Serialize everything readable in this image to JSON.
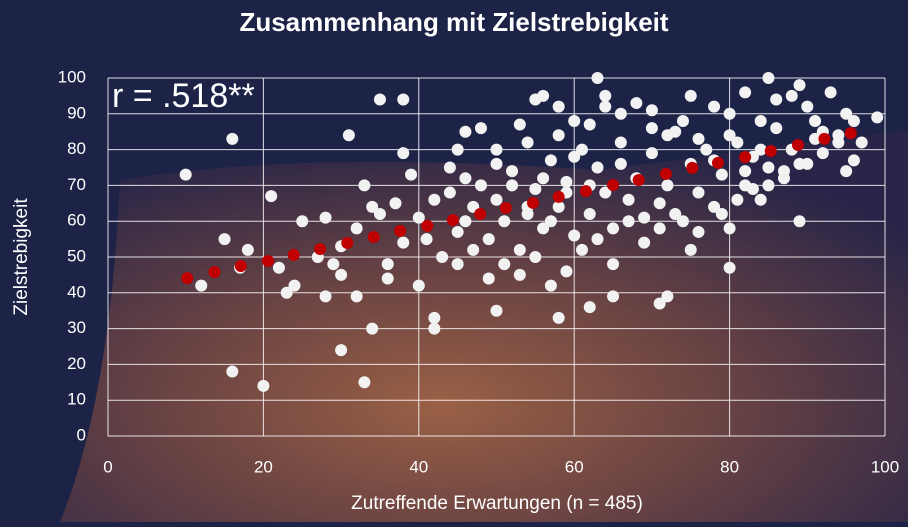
{
  "chart_data": {
    "type": "scatter",
    "title": "Zusammenhang mit Zielstrebigkeit",
    "x_label": "Zutreffende Erwartungen (n = 485)",
    "y_label": "Zielstrebigkeit",
    "annotation": "r = .518**",
    "xlim": [
      0,
      100
    ],
    "xticks": [
      0,
      20,
      40,
      60,
      80,
      100
    ],
    "ylim": [
      0,
      100
    ],
    "yticks": [
      0,
      10,
      20,
      30,
      40,
      50,
      60,
      70,
      80,
      90,
      100
    ],
    "grid": true,
    "series": [
      {
        "color": "#f2f2f2",
        "x": [
          10,
          12,
          15,
          16,
          16,
          20,
          21,
          23,
          24,
          25,
          28,
          30,
          31,
          32,
          33,
          34,
          35,
          38,
          38,
          40,
          42,
          42,
          50,
          58,
          62,
          63,
          64,
          65,
          71,
          72,
          75,
          80,
          82,
          85,
          89,
          89,
          93,
          95,
          96,
          99,
          17,
          18,
          22,
          27,
          29,
          30,
          32,
          36,
          38,
          37,
          40,
          44,
          45,
          46,
          48,
          50,
          53,
          55,
          56,
          58,
          60,
          62,
          64,
          66,
          68,
          70,
          72,
          75,
          78,
          80,
          84,
          86,
          88,
          90,
          92,
          94,
          96,
          28,
          30,
          33,
          34,
          35,
          36,
          39,
          41,
          43,
          44,
          45,
          46,
          47,
          48,
          49,
          50,
          51,
          52,
          53,
          54,
          55,
          56,
          57,
          58,
          59,
          60,
          61,
          62,
          63,
          64,
          65,
          66,
          67,
          68,
          69,
          70,
          71,
          72,
          73,
          74,
          75,
          76,
          77,
          78,
          79,
          80,
          81,
          82,
          83,
          84,
          85,
          86,
          87,
          88,
          90,
          91,
          92,
          94,
          95,
          97,
          45,
          47,
          49,
          51,
          53,
          55,
          57,
          59,
          61,
          63,
          65,
          67,
          69,
          71,
          73,
          76,
          79,
          81,
          83,
          85,
          87,
          89,
          91,
          42,
          46,
          50,
          54,
          56,
          58,
          60,
          62,
          66,
          70,
          74,
          76,
          78,
          80,
          82,
          84,
          52,
          54,
          57,
          59
        ],
        "values": [
          73,
          42,
          55,
          83,
          18,
          14,
          67,
          40,
          42,
          60,
          39,
          24,
          84,
          39,
          15,
          30,
          94,
          94,
          79,
          42,
          33,
          30,
          35,
          33,
          36,
          100,
          95,
          39,
          37,
          39,
          52,
          47,
          96,
          100,
          98,
          60,
          96,
          90,
          77,
          89,
          47,
          52,
          47,
          50,
          48,
          53,
          58,
          48,
          54,
          65,
          61,
          75,
          80,
          85,
          86,
          80,
          87,
          94,
          95,
          92,
          88,
          87,
          92,
          90,
          93,
          91,
          84,
          95,
          92,
          90,
          88,
          94,
          95,
          92,
          85,
          82,
          88,
          61,
          45,
          70,
          64,
          62,
          44,
          73,
          55,
          50,
          68,
          57,
          72,
          64,
          70,
          55,
          66,
          60,
          74,
          52,
          62,
          69,
          58,
          77,
          64,
          71,
          56,
          80,
          62,
          75,
          68,
          58,
          82,
          66,
          72,
          61,
          79,
          65,
          70,
          85,
          60,
          76,
          68,
          80,
          64,
          73,
          58,
          82,
          70,
          78,
          66,
          75,
          86,
          72,
          80,
          76,
          88,
          79,
          84,
          74,
          82,
          48,
          52,
          44,
          48,
          45,
          50,
          42,
          46,
          52,
          55,
          48,
          60,
          54,
          58,
          62,
          57,
          62,
          66,
          69,
          70,
          74,
          76,
          83,
          66,
          60,
          76,
          82,
          72,
          84,
          78,
          70,
          76,
          86,
          88,
          83,
          77,
          84,
          74,
          80,
          70,
          64,
          60,
          68
        ]
      },
      {
        "color": "#c00000",
        "x": [
          10.2,
          13.7,
          17.1,
          20.6,
          23.9,
          27.3,
          30.8,
          34.2,
          37.6,
          41.1,
          44.4,
          47.9,
          51.2,
          54.7,
          58.0,
          61.5,
          65.0,
          68.3,
          71.8,
          75.2,
          78.5,
          82.0,
          85.3,
          88.8,
          92.2,
          95.6
        ],
        "values": [
          44.1,
          45.8,
          47.5,
          48.9,
          50.6,
          52.2,
          53.9,
          55.6,
          57.3,
          58.7,
          60.3,
          62.0,
          63.7,
          65.1,
          66.8,
          68.4,
          70.1,
          71.5,
          73.2,
          74.9,
          76.3,
          77.9,
          79.6,
          81.3,
          83.0,
          84.6
        ]
      }
    ]
  }
}
